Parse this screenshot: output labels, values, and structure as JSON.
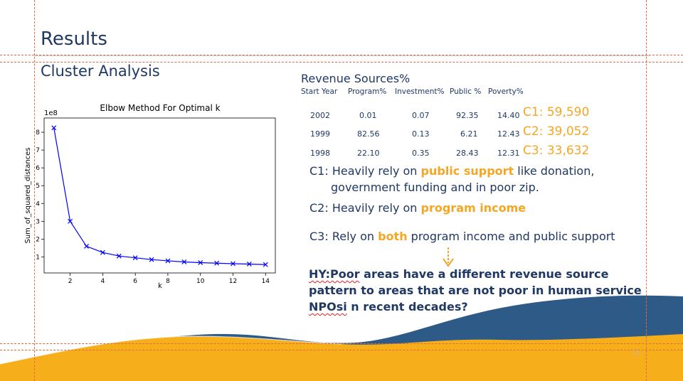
{
  "slide": {
    "title": "Results",
    "subtitle": "Cluster Analysis",
    "page_number": "13"
  },
  "revenue": {
    "title": "Revenue Sources%",
    "headers": [
      "Start Year",
      "Program%",
      "Investment%",
      "Public %",
      "Poverty%"
    ],
    "rows": [
      [
        "2002",
        "0.01",
        "0.07",
        "92.35",
        "14.40"
      ],
      [
        "1999",
        "82.56",
        "0.13",
        "6.21",
        "12.43"
      ],
      [
        "1998",
        "22.10",
        "0.35",
        "28.43",
        "12.31"
      ]
    ],
    "clusters": [
      "C1: 59,590",
      "C2: 39,052",
      "C3: 33,632"
    ]
  },
  "descriptions": {
    "c1_pre": "C1: Heavily rely on ",
    "c1_hl": "public support",
    "c1_post": " like donation,",
    "c1_line2": "government funding and in poor zip.",
    "c2_pre": "C2: Heavily rely on ",
    "c2_hl": "program income",
    "c3_pre": "C3: Rely on ",
    "c3_hl": "both",
    "c3_post": " program income and public support"
  },
  "hypothesis": {
    "w1": "HY:Poor",
    "t1": " areas have a different revenue source",
    "line2": "pattern to areas that are not poor in human service",
    "w2": "NPOsi",
    "t3": " n recent decades?"
  },
  "chart_data": {
    "type": "line",
    "title": "Elbow Method For Optimal k",
    "xlabel": "k",
    "ylabel": "Sum_of_squared_distances",
    "y_multiplier_label": "1e8",
    "x": [
      1,
      2,
      3,
      4,
      5,
      6,
      7,
      8,
      9,
      10,
      11,
      12,
      13,
      14
    ],
    "values": [
      8.25,
      3.0,
      1.6,
      1.25,
      1.05,
      0.95,
      0.85,
      0.78,
      0.72,
      0.68,
      0.65,
      0.62,
      0.6,
      0.57
    ],
    "x_ticks": [
      2,
      4,
      6,
      8,
      10,
      12,
      14
    ],
    "y_ticks": [
      1,
      2,
      3,
      4,
      5,
      6,
      7,
      8
    ],
    "xlim": [
      0.4,
      14.6
    ],
    "ylim": [
      0.1,
      8.8
    ],
    "color": "#0000ff",
    "marker": "x",
    "grid": false
  },
  "colors": {
    "accent": "#f5a623",
    "text": "#1f3864",
    "wave_dark": "#2e5a88",
    "wave_gold": "#f6ae1b"
  }
}
